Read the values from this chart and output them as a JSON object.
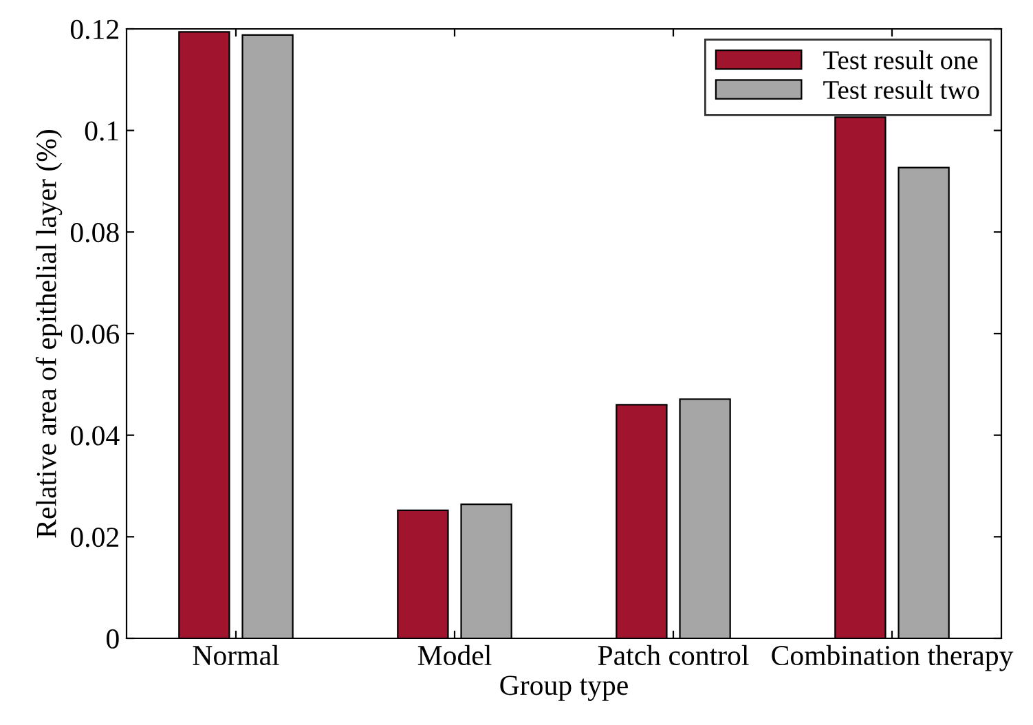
{
  "chart_data": {
    "type": "bar",
    "xlabel": "Group type",
    "ylabel": "Relative area of epithelial layer (%)",
    "categories": [
      "Normal",
      "Model",
      "Patch control",
      "Combination therapy"
    ],
    "series": [
      {
        "name": "Test result one",
        "color": "#a0142e",
        "values": [
          0.1194,
          0.0252,
          0.046,
          0.1026
        ]
      },
      {
        "name": "Test result two",
        "color": "#a6a6a6",
        "values": [
          0.1188,
          0.0264,
          0.0471,
          0.0927
        ]
      }
    ],
    "ylim": [
      0,
      0.12
    ],
    "yticks": [
      0,
      0.02,
      0.04,
      0.06,
      0.08,
      {
        "value": 0.1,
        "label": "0.1"
      },
      0.12
    ],
    "grid": false,
    "legend": "top right"
  }
}
